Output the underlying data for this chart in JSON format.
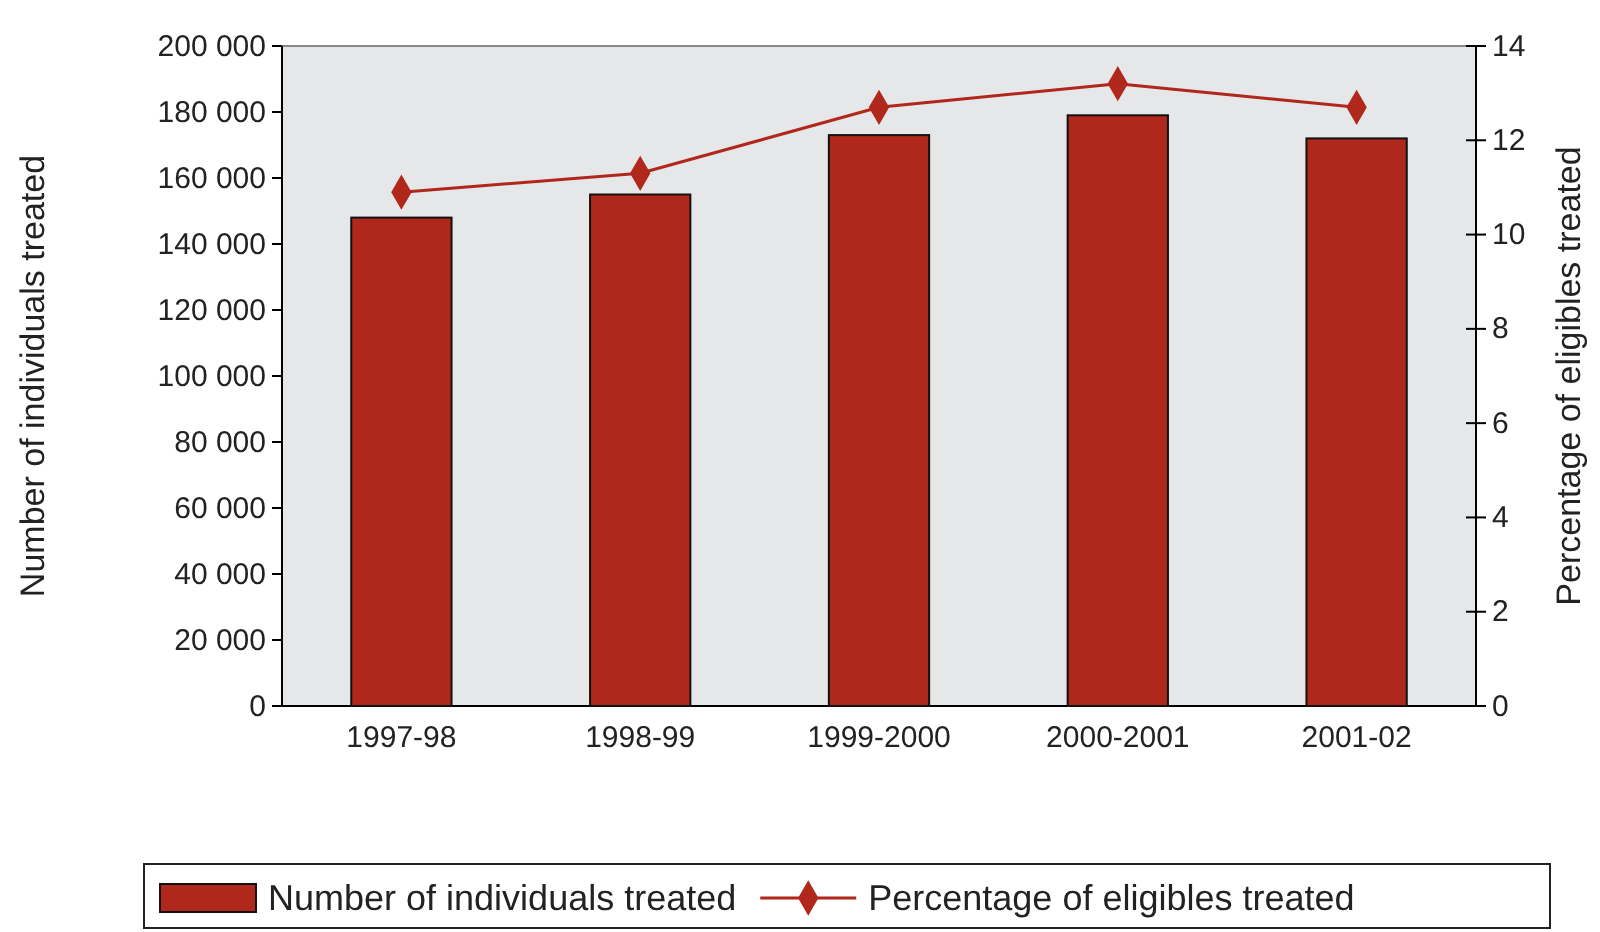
{
  "chart_data": {
    "type": "bar",
    "ylabel": "Number of individuals treated",
    "y2label": "Percentage of eligibles treated",
    "categories": [
      "1997-98",
      "1998-99",
      "1999-2000",
      "2000-2001",
      "2001-02"
    ],
    "series": [
      {
        "name": "Number of individuals treated",
        "color": "#b0271b",
        "values": [
          148000,
          155000,
          173000,
          179000,
          172000
        ]
      },
      {
        "name": "Percentage of eligibles treated",
        "type": "line",
        "axis": "y2",
        "color": "#b0271b",
        "marker": "diamond",
        "values": [
          10.9,
          11.3,
          12.7,
          13.2,
          12.7
        ]
      }
    ],
    "ylim": [
      0,
      200000
    ],
    "yticks": [
      {
        "value": 0,
        "label": "0"
      },
      {
        "value": 20000,
        "label": "20 000"
      },
      {
        "value": 40000,
        "label": "40 000"
      },
      {
        "value": 60000,
        "label": "60 000"
      },
      {
        "value": 80000,
        "label": "80 000"
      },
      {
        "value": 100000,
        "label": "100 000"
      },
      {
        "value": 120000,
        "label": "120 000"
      },
      {
        "value": 140000,
        "label": "140 000"
      },
      {
        "value": 160000,
        "label": "160 000"
      },
      {
        "value": 180000,
        "label": "180 000"
      },
      {
        "value": 200000,
        "label": "200 000"
      }
    ],
    "y2lim": [
      0,
      14
    ],
    "y2ticks": [
      0,
      2,
      4,
      6,
      8,
      10,
      12,
      14
    ],
    "grid": false,
    "legend": "bottom"
  }
}
